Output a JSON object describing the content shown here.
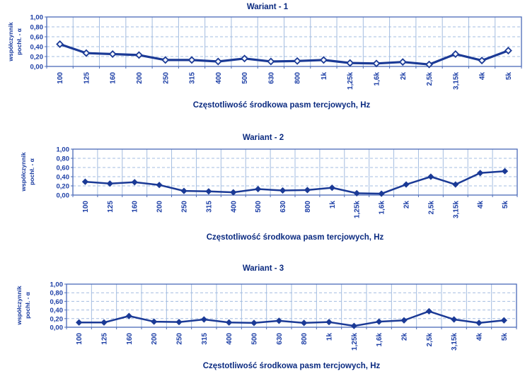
{
  "colors": {
    "line": "#1b3a96",
    "marker_fill": "#1b3a96",
    "marker_hollow_fill": "#f4f7fc",
    "grid": "#a3bce0",
    "border": "#4a6ab8",
    "tick_text": "#1d3fa6",
    "title_text": "#0a2a80",
    "background": "#ffffff"
  },
  "chart_data": [
    {
      "type": "line",
      "title": "Wariant - 1",
      "xlabel": "Częstotliwość środkowa pasm tercjowych, Hz",
      "ylabel": "współczynnik pochł. - α",
      "ylabel_lines": [
        "współczynnik",
        "pochł. - α"
      ],
      "categories": [
        "100",
        "125",
        "160",
        "200",
        "250",
        "315",
        "400",
        "500",
        "630",
        "800",
        "1k",
        "1,25k",
        "1,6k",
        "2k",
        "2,5k",
        "3,15k",
        "4k",
        "5k"
      ],
      "values": [
        0.45,
        0.27,
        0.25,
        0.23,
        0.13,
        0.13,
        0.1,
        0.16,
        0.1,
        0.11,
        0.13,
        0.07,
        0.06,
        0.09,
        0.04,
        0.25,
        0.12,
        0.32
      ],
      "ylim": [
        0,
        1
      ],
      "ytick_labels": [
        "1,00",
        "0,80",
        "0,60",
        "0,40",
        "0,20",
        "0,00"
      ],
      "ytick_values": [
        1.0,
        0.8,
        0.6,
        0.4,
        0.2,
        0.0
      ],
      "grid": true,
      "legend": false,
      "marker": "hollow-diamond"
    },
    {
      "type": "line",
      "title": "Wariant - 2",
      "xlabel": "Częstotliwość środkowa pasm tercjowych, Hz",
      "ylabel": "współczynnik pochł. - α",
      "ylabel_lines": [
        "współczynnik",
        "pochł. - α"
      ],
      "categories": [
        "100",
        "125",
        "160",
        "200",
        "250",
        "315",
        "400",
        "500",
        "630",
        "800",
        "1k",
        "1,25k",
        "1,6k",
        "2k",
        "2,5k",
        "3,15k",
        "4k",
        "5k"
      ],
      "values": [
        0.29,
        0.25,
        0.28,
        0.22,
        0.09,
        0.08,
        0.06,
        0.13,
        0.1,
        0.11,
        0.16,
        0.04,
        0.03,
        0.23,
        0.4,
        0.23,
        0.48,
        0.52
      ],
      "ylim": [
        0,
        1
      ],
      "ytick_labels": [
        "1,00",
        "0,80",
        "0,60",
        "0,40",
        "0,20",
        "0,00"
      ],
      "ytick_values": [
        1.0,
        0.8,
        0.6,
        0.4,
        0.2,
        0.0
      ],
      "grid": true,
      "legend": false,
      "marker": "filled-diamond"
    },
    {
      "type": "line",
      "title": "Wariant - 3",
      "xlabel": "Częstotliwość środkowa pasm tercjowych, Hz",
      "ylabel": "współczynnik pochł. - α",
      "ylabel_lines": [
        "współczynnik",
        "pochł. - α"
      ],
      "categories": [
        "100",
        "125",
        "160",
        "200",
        "250",
        "315",
        "400",
        "500",
        "630",
        "800",
        "1k",
        "1,25k",
        "1,6k",
        "2k",
        "2,5k",
        "3,15k",
        "4k",
        "5k"
      ],
      "values": [
        0.11,
        0.11,
        0.26,
        0.13,
        0.12,
        0.18,
        0.11,
        0.1,
        0.15,
        0.1,
        0.12,
        0.03,
        0.13,
        0.16,
        0.37,
        0.18,
        0.1,
        0.16
      ],
      "ylim": [
        0,
        1
      ],
      "ytick_labels": [
        "1,00",
        "0,80",
        "0,60",
        "0,40",
        "0,20",
        "0,00"
      ],
      "ytick_values": [
        1.0,
        0.8,
        0.6,
        0.4,
        0.2,
        0.0
      ],
      "grid": true,
      "legend": false,
      "marker": "filled-diamond"
    }
  ]
}
